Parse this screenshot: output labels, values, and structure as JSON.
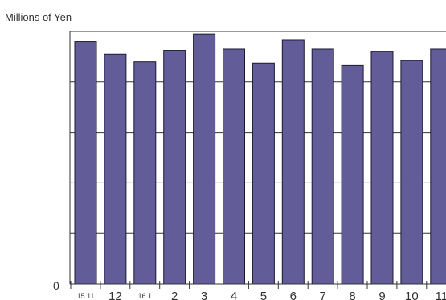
{
  "chart_data": {
    "type": "bar",
    "ylabel": "Millions of Yen",
    "y_tick_labels": [
      "0"
    ],
    "ylim": [
      0,
      100
    ],
    "gridlines": [
      20,
      40,
      60,
      80,
      100
    ],
    "grid": "horizontal",
    "categories": [
      "15.11",
      "12",
      "16.1",
      "2",
      "3",
      "4",
      "5",
      "6",
      "7",
      "8",
      "9",
      "10",
      "11"
    ],
    "values": [
      96,
      91,
      88,
      92.5,
      99,
      93,
      87.5,
      96.5,
      93,
      86.5,
      92,
      88.5,
      93
    ],
    "bar_color": "#625c99",
    "bar_outline": "#1c1a33"
  }
}
